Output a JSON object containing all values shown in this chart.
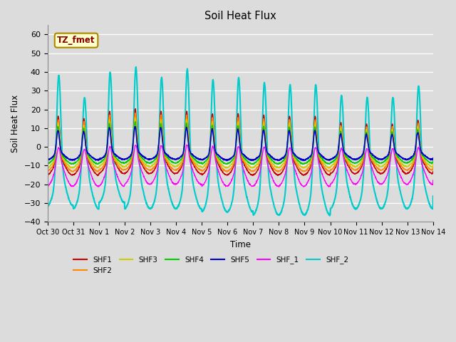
{
  "title": "Soil Heat Flux",
  "xlabel": "Time",
  "ylabel": "Soil Heat Flux",
  "ylim": [
    -40,
    65
  ],
  "yticks": [
    -40,
    -30,
    -20,
    -10,
    0,
    10,
    20,
    30,
    40,
    50,
    60
  ],
  "xtick_labels": [
    "Oct 30",
    "Oct 31",
    "Nov 1",
    "Nov 2",
    "Nov 3",
    "Nov 4",
    "Nov 5",
    "Nov 6",
    "Nov 7",
    "Nov 8",
    "Nov 9",
    "Nov 10",
    "Nov 11",
    "Nov 12",
    "Nov 13",
    "Nov 14"
  ],
  "series": {
    "SHF1": {
      "color": "#cc0000",
      "linewidth": 1.0
    },
    "SHF2": {
      "color": "#ff8800",
      "linewidth": 1.0
    },
    "SHF3": {
      "color": "#cccc00",
      "linewidth": 1.0
    },
    "SHF4": {
      "color": "#00cc00",
      "linewidth": 1.0
    },
    "SHF5": {
      "color": "#0000cc",
      "linewidth": 1.2
    },
    "SHF_1": {
      "color": "#ff00ff",
      "linewidth": 1.0
    },
    "SHF_2": {
      "color": "#00cccc",
      "linewidth": 1.5
    }
  },
  "annotation_text": "TZ_fmet",
  "bg_color": "#dcdcdc",
  "grid_color": "#ffffff",
  "n_days": 15,
  "points_per_day": 144
}
